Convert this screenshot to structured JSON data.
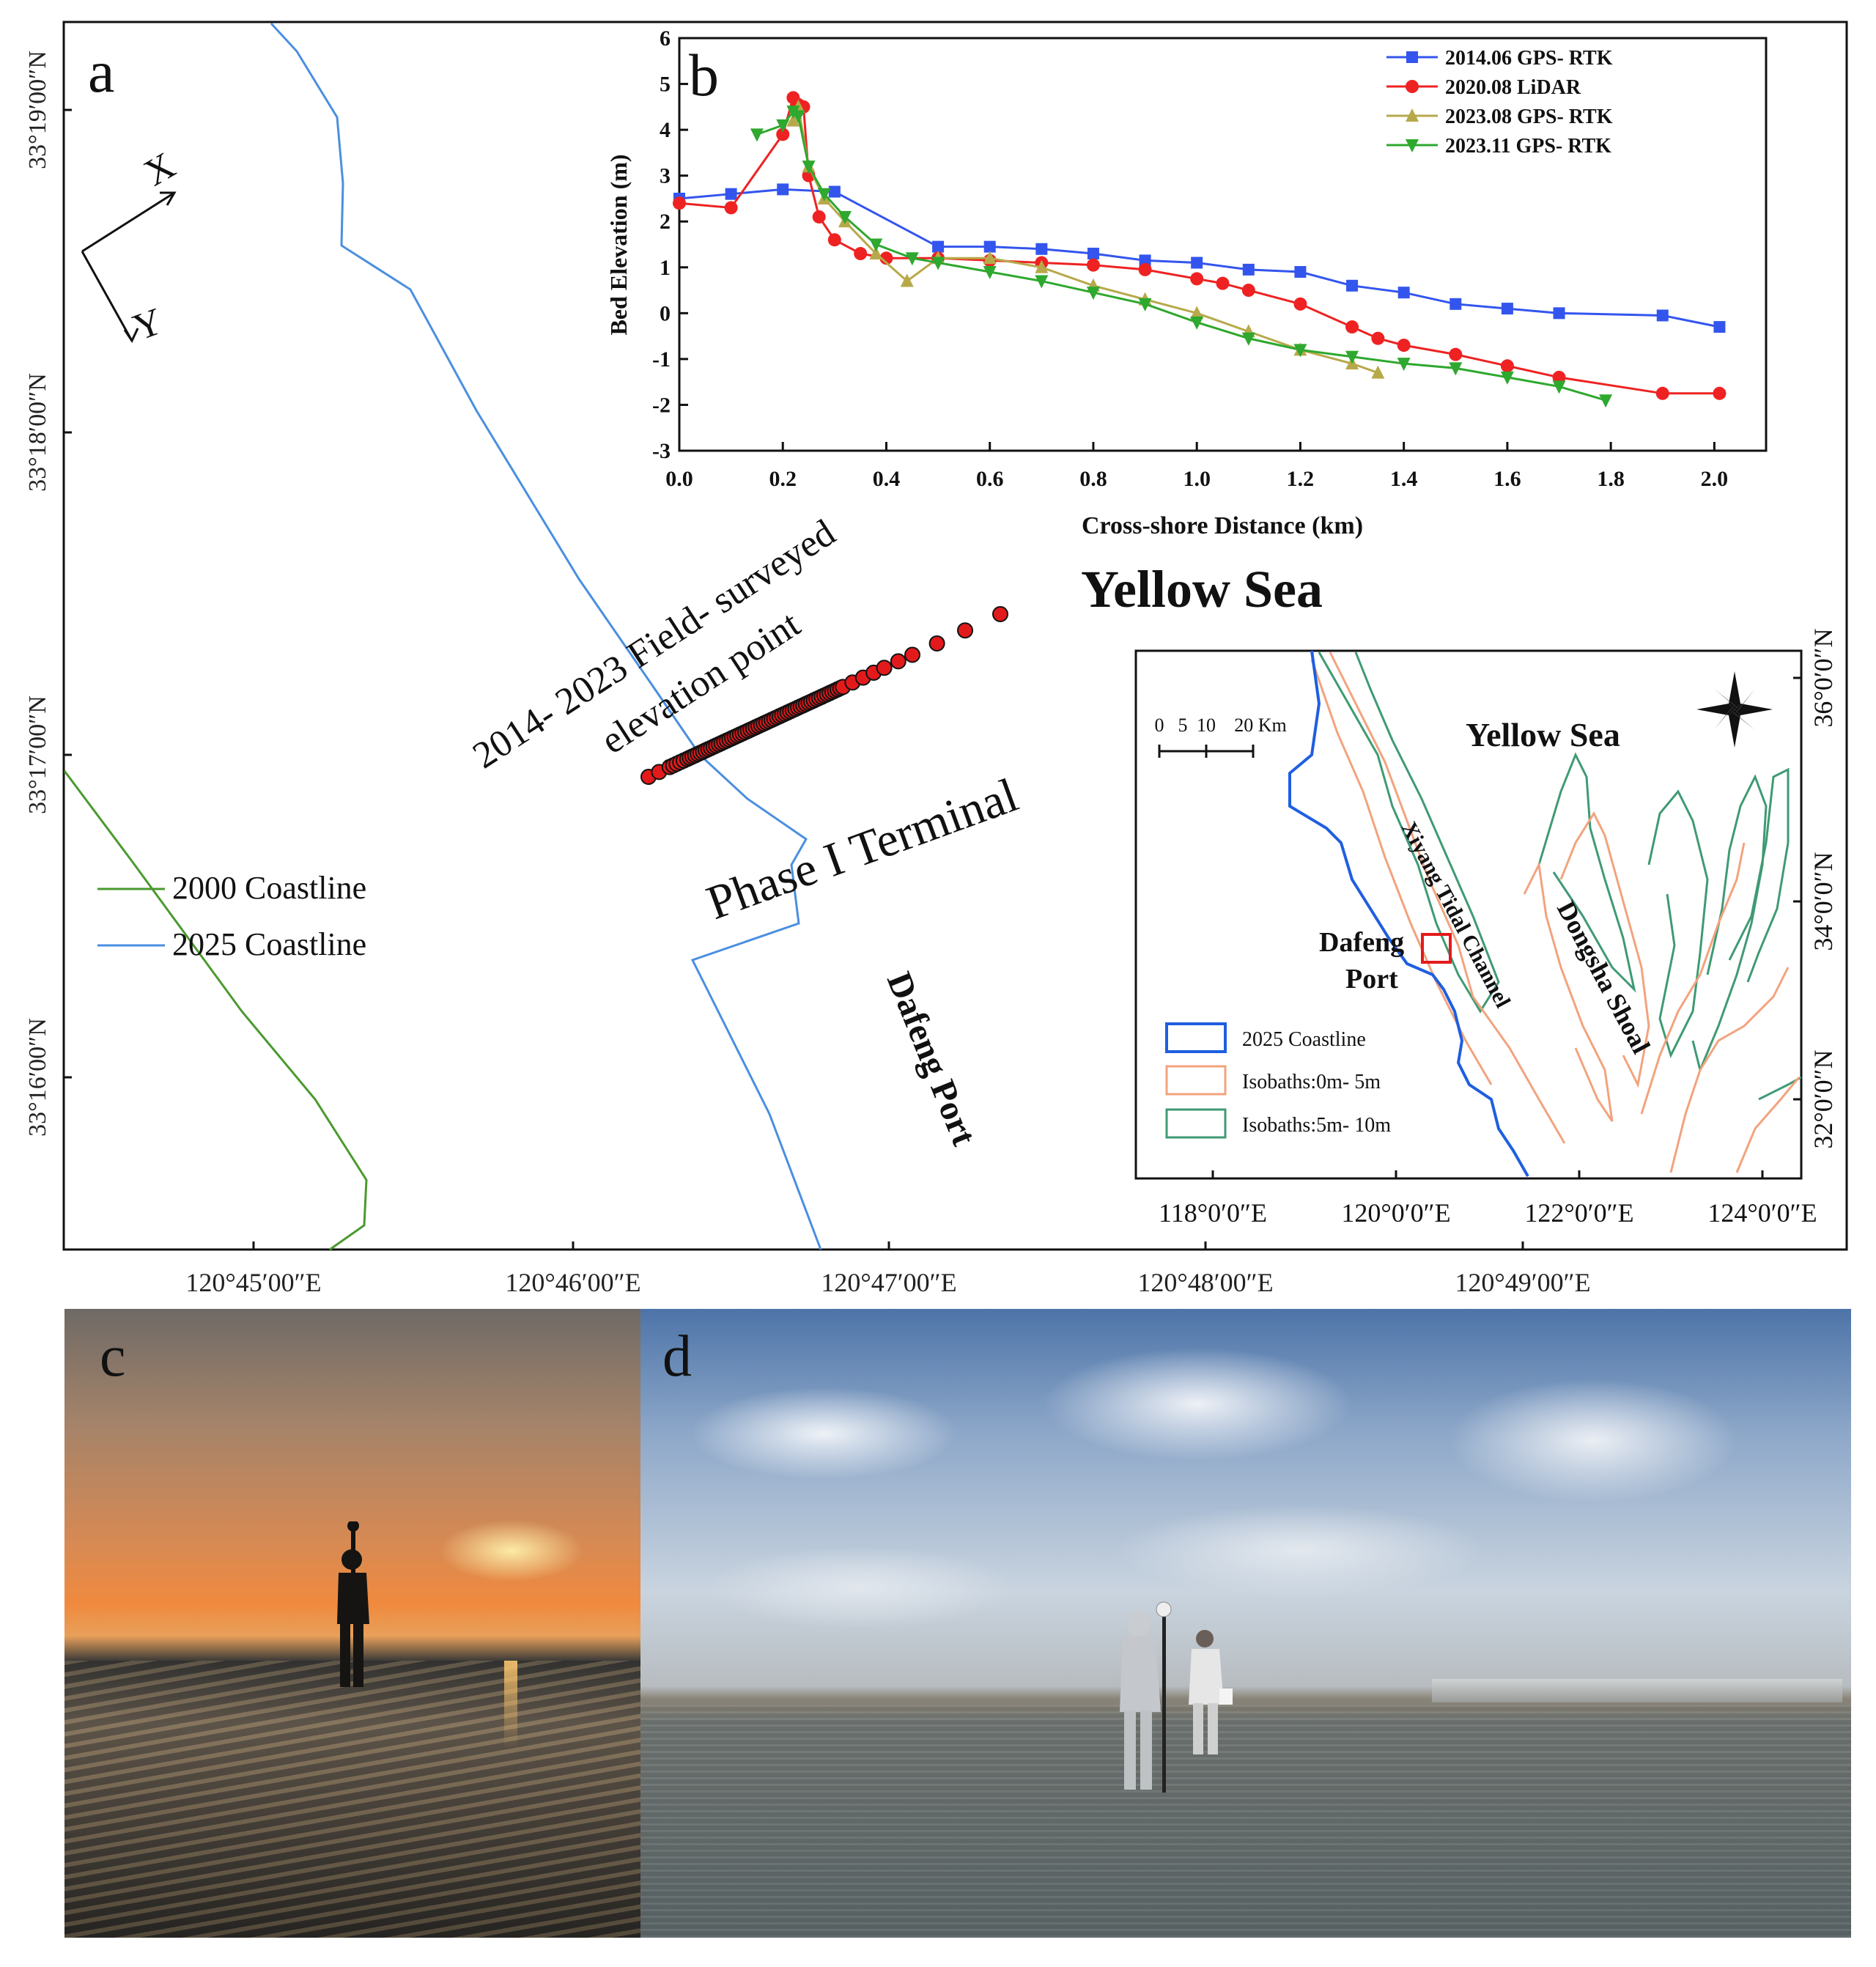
{
  "panel_a": {
    "letter": "a",
    "axis_x_ticks": [
      "120°45′00″E",
      "120°46′00″E",
      "120°47′00″E",
      "120°48′00″E",
      "120°49′00″E"
    ],
    "axis_y_ticks": [
      "33°19′00″N",
      "33°18′00″N",
      "33°17′00″N",
      "33°16′00″N"
    ],
    "axes_arrows": {
      "x": "X",
      "y": "Y"
    },
    "legend": [
      {
        "label": "2000 Coastline",
        "color": "#4a9a2e"
      },
      {
        "label": "2025 Coastline",
        "color": "#4a8fe0"
      }
    ],
    "labels": {
      "sea": "Yellow Sea",
      "survey_line1": "2014- 2023 Field- surveyed",
      "survey_line2": "elevation point",
      "terminal": "Phase I Terminal",
      "port": "Dafeng Port"
    },
    "survey_point_color": "#e31a1c"
  },
  "panel_b": {
    "letter": "b",
    "chart_data": {
      "type": "line",
      "xlabel": "Cross-shore Distance (km)",
      "ylabel": "Bed Elevation (m)",
      "xlim": [
        0.0,
        2.1
      ],
      "ylim": [
        -3,
        6
      ],
      "x_ticks": [
        "0.0",
        "0.2",
        "0.4",
        "0.6",
        "0.8",
        "1.0",
        "1.2",
        "1.4",
        "1.6",
        "1.8",
        "2.0"
      ],
      "y_ticks": [
        "-3",
        "-2",
        "-1",
        "0",
        "1",
        "2",
        "3",
        "4",
        "5",
        "6"
      ],
      "legend_position": "top-right",
      "series": [
        {
          "name": "2014.06 GPS- RTK",
          "color": "#3355ee",
          "marker": "square",
          "x": [
            0.0,
            0.1,
            0.2,
            0.3,
            0.5,
            0.6,
            0.7,
            0.8,
            0.9,
            1.0,
            1.1,
            1.2,
            1.3,
            1.4,
            1.5,
            1.6,
            1.7,
            1.9,
            2.01
          ],
          "y": [
            2.5,
            2.6,
            2.7,
            2.65,
            1.45,
            1.45,
            1.4,
            1.3,
            1.15,
            1.1,
            0.95,
            0.9,
            0.6,
            0.45,
            0.2,
            0.1,
            0.0,
            -0.05,
            -0.3
          ]
        },
        {
          "name": "2020.08 LiDAR",
          "color": "#ee2222",
          "marker": "circle",
          "x": [
            0.0,
            0.1,
            0.2,
            0.22,
            0.23,
            0.24,
            0.25,
            0.27,
            0.3,
            0.35,
            0.4,
            0.5,
            0.6,
            0.7,
            0.8,
            0.9,
            1.0,
            1.05,
            1.1,
            1.2,
            1.3,
            1.35,
            1.4,
            1.5,
            1.6,
            1.7,
            1.9,
            2.01
          ],
          "y": [
            2.4,
            2.3,
            3.9,
            4.7,
            4.55,
            4.5,
            3.0,
            2.1,
            1.6,
            1.3,
            1.2,
            1.2,
            1.15,
            1.1,
            1.05,
            0.95,
            0.75,
            0.65,
            0.5,
            0.2,
            -0.3,
            -0.55,
            -0.7,
            -0.9,
            -1.15,
            -1.4,
            -1.75,
            -1.75
          ]
        },
        {
          "name": "2023.08 GPS- RTK",
          "color": "#b7a94a",
          "marker": "triangle-up",
          "x": [
            0.22,
            0.23,
            0.25,
            0.28,
            0.32,
            0.38,
            0.44,
            0.5,
            0.6,
            0.7,
            0.8,
            0.9,
            1.0,
            1.1,
            1.2,
            1.3,
            1.35
          ],
          "y": [
            4.2,
            4.5,
            3.2,
            2.5,
            2.0,
            1.3,
            0.7,
            1.2,
            1.2,
            1.0,
            0.6,
            0.3,
            0.0,
            -0.4,
            -0.8,
            -1.1,
            -1.3
          ]
        },
        {
          "name": "2023.11 GPS- RTK",
          "color": "#2ea82e",
          "marker": "triangle-down",
          "x": [
            0.15,
            0.2,
            0.22,
            0.23,
            0.25,
            0.28,
            0.32,
            0.38,
            0.45,
            0.5,
            0.6,
            0.7,
            0.8,
            0.9,
            1.0,
            1.1,
            1.2,
            1.3,
            1.4,
            1.5,
            1.6,
            1.7,
            1.79
          ],
          "y": [
            3.9,
            4.1,
            4.4,
            4.3,
            3.2,
            2.6,
            2.1,
            1.5,
            1.2,
            1.1,
            0.9,
            0.7,
            0.45,
            0.2,
            -0.2,
            -0.55,
            -0.8,
            -0.95,
            -1.1,
            -1.2,
            -1.4,
            -1.6,
            -1.9
          ]
        }
      ]
    }
  },
  "inset": {
    "lon_ticks": [
      "118°0′0″E",
      "120°0′0″E",
      "122°0′0″E",
      "124°0′0″E"
    ],
    "lat_ticks": [
      "36°0′0″N",
      "34°0′0″N",
      "32°0′0″N"
    ],
    "scale_labels": [
      "0",
      "5",
      "10",
      "20 Km"
    ],
    "labels": {
      "sea": "Yellow Sea",
      "port_line1": "Dafeng",
      "port_line2": "Port",
      "channel": "Xiyang Tidal Channel",
      "shoal": "Dongsha Shoal"
    },
    "legend": [
      {
        "label": "2025 Coastline",
        "color": "#1f5fe0"
      },
      {
        "label": "Isobaths:0m- 5m",
        "color": "#f2a37e"
      },
      {
        "label": "Isobaths:5m- 10m",
        "color": "#3f9a74"
      }
    ],
    "highlight_color": "#e31a1c"
  },
  "photos": {
    "c_letter": "c",
    "d_letter": "d"
  }
}
